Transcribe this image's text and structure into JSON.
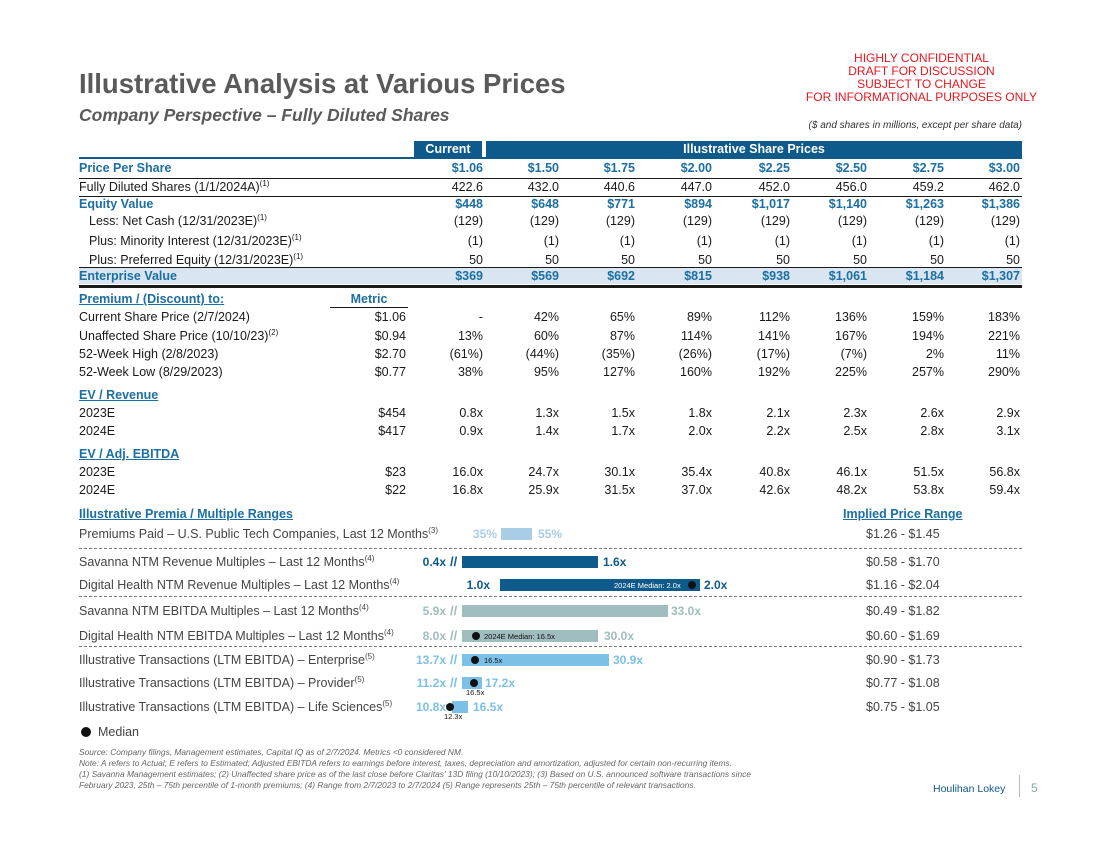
{
  "header": {
    "title": "Illustrative Analysis at Various Prices",
    "subtitle": "Company Perspective – Fully Diluted Shares",
    "confidential": [
      "HIGHLY CONFIDENTIAL",
      "DRAFT FOR DISCUSSION",
      "SUBJECT TO CHANGE",
      "FOR INFORMATIONAL PURPOSES ONLY"
    ],
    "units_note": "($ and shares in millions, except per share data)"
  },
  "table": {
    "current_label": "Current",
    "illustrative_label": "Illustrative Share Prices",
    "rows": [
      {
        "label": "Price Per Share",
        "sup": "",
        "values": [
          "$1.06",
          "$1.50",
          "$1.75",
          "$2.00",
          "$2.25",
          "$2.50",
          "$2.75",
          "$3.00"
        ]
      },
      {
        "label": "Fully Diluted Shares (1/1/2024A)",
        "sup": "(1)",
        "values": [
          "422.6",
          "432.0",
          "440.6",
          "447.0",
          "452.0",
          "456.0",
          "459.2",
          "462.0"
        ]
      },
      {
        "label": "Equity Value",
        "sup": "",
        "values": [
          "$448",
          "$648",
          "$771",
          "$894",
          "$1,017",
          "$1,140",
          "$1,263",
          "$1,386"
        ]
      },
      {
        "label": "Less: Net Cash (12/31/2023E)",
        "sup": "(1)",
        "values": [
          "(129)",
          "(129)",
          "(129)",
          "(129)",
          "(129)",
          "(129)",
          "(129)",
          "(129)"
        ]
      },
      {
        "label": "Plus: Minority Interest (12/31/2023E)",
        "sup": "(1)",
        "values": [
          "(1)",
          "(1)",
          "(1)",
          "(1)",
          "(1)",
          "(1)",
          "(1)",
          "(1)"
        ]
      },
      {
        "label": "Plus: Preferred Equity (12/31/2023E)",
        "sup": "(1)",
        "values": [
          "50",
          "50",
          "50",
          "50",
          "50",
          "50",
          "50",
          "50"
        ]
      },
      {
        "label": "Enterprise Value",
        "sup": "",
        "values": [
          "$369",
          "$569",
          "$692",
          "$815",
          "$938",
          "$1,061",
          "$1,184",
          "$1,307"
        ]
      }
    ],
    "metric_header": "Metric",
    "premium": {
      "title": "Premium / (Discount) to:",
      "rows": [
        {
          "label": "Current Share Price (2/7/2024)",
          "sup": "",
          "metric": "$1.06",
          "values": [
            "-",
            "42%",
            "65%",
            "89%",
            "112%",
            "136%",
            "159%",
            "183%"
          ]
        },
        {
          "label": "Unaffected Share Price (10/10/23)",
          "sup": "(2)",
          "metric": "$0.94",
          "values": [
            "13%",
            "60%",
            "87%",
            "114%",
            "141%",
            "167%",
            "194%",
            "221%"
          ]
        },
        {
          "label": "52-Week High (2/8/2023)",
          "sup": "",
          "metric": "$2.70",
          "values": [
            "(61%)",
            "(44%)",
            "(35%)",
            "(26%)",
            "(17%)",
            "(7%)",
            "2%",
            "11%"
          ]
        },
        {
          "label": "52-Week Low (8/29/2023)",
          "sup": "",
          "metric": "$0.77",
          "values": [
            "38%",
            "95%",
            "127%",
            "160%",
            "192%",
            "225%",
            "257%",
            "290%"
          ]
        }
      ]
    },
    "ev_revenue": {
      "title": "EV / Revenue",
      "rows": [
        {
          "label": "2023E",
          "metric": "$454",
          "values": [
            "0.8x",
            "1.3x",
            "1.5x",
            "1.8x",
            "2.1x",
            "2.3x",
            "2.6x",
            "2.9x"
          ]
        },
        {
          "label": "2024E",
          "metric": "$417",
          "values": [
            "0.9x",
            "1.4x",
            "1.7x",
            "2.0x",
            "2.2x",
            "2.5x",
            "2.8x",
            "3.1x"
          ]
        }
      ]
    },
    "ev_ebitda": {
      "title": "EV / Adj. EBITDA",
      "rows": [
        {
          "label": "2023E",
          "metric": "$23",
          "values": [
            "16.0x",
            "24.7x",
            "30.1x",
            "35.4x",
            "40.8x",
            "46.1x",
            "51.5x",
            "56.8x"
          ]
        },
        {
          "label": "2024E",
          "metric": "$22",
          "values": [
            "16.8x",
            "25.9x",
            "31.5x",
            "37.0x",
            "42.6x",
            "48.2x",
            "53.8x",
            "59.4x"
          ]
        }
      ]
    }
  },
  "ranges": {
    "title": "Illustrative Premia / Multiple Ranges",
    "implied_title": "Implied Price Range",
    "rows": [
      {
        "label": "Premiums Paid – U.S. Public Tech Companies, Last 12 Months",
        "sup": "(3)",
        "low": "35%",
        "high": "55%",
        "median": "",
        "implied": "$1.26 - $1.45"
      },
      {
        "label": "Savanna NTM Revenue Multiples – Last 12 Months",
        "sup": "(4)",
        "low": "0.4x",
        "high": "1.6x",
        "median": "",
        "implied": "$0.58 - $1.70"
      },
      {
        "label": "Digital Health NTM Revenue Multiples – Last 12 Months",
        "sup": "(4)",
        "low": "1.0x",
        "high": "2.0x",
        "median": "2024E Median: 2.0x",
        "implied": "$1.16 - $2.04"
      },
      {
        "label": "Savanna NTM EBITDA Multiples – Last 12 Months",
        "sup": "(4)",
        "low": "5.9x",
        "high": "33.0x",
        "median": "",
        "implied": "$0.49 - $1.82"
      },
      {
        "label": "Digital Health NTM EBITDA Multiples – Last 12 Months",
        "sup": "(4)",
        "low": "8.0x",
        "high": "30.0x",
        "median": "2024E Median: 16.5x",
        "implied": "$0.60 - $1.69"
      },
      {
        "label": "Illustrative Transactions (LTM EBITDA) – Enterprise",
        "sup": "(5)",
        "low": "13.7x",
        "high": "30.9x",
        "median": "16.5x",
        "implied": "$0.90 - $1.73"
      },
      {
        "label": "Illustrative Transactions (LTM EBITDA) – Provider",
        "sup": "(5)",
        "low": "11.2x",
        "high": "17.2x",
        "median": "16.5x",
        "implied": "$0.77 - $1.08"
      },
      {
        "label": "Illustrative Transactions (LTM EBITDA) – Life Sciences",
        "sup": "(5)",
        "low": "10.8x",
        "high": "16.5x",
        "median": "12.3x",
        "implied": "$0.75 - $1.05"
      }
    ],
    "legend": "Median",
    "colors": {
      "light": "#a9cde6",
      "dark": "#0e5a8a",
      "grey": "#9fbcbe",
      "mid": "#7cc0e6",
      "accent": "#1b6fa3"
    }
  },
  "footer": {
    "lines": [
      "Source: Company filings, Management estimates, Capital IQ as of 2/7/2024. Metrics <0 considered NM.",
      "Note: A refers to Actual; E refers to Estimated; Adjusted EBITDA refers to earnings before interest, taxes, depreciation and amortization, adjusted for certain non-recurring items.",
      "(1) Savanna Management estimates; (2) Unaffected share price as of the last close before Claritas' 13D filing (10/10/2023); (3) Based on U.S. announced software transactions since",
      "February 2023, 25th – 75th percentile of 1-month premiums; (4) Range from 2/7/2023 to 2/7/2024  (5) Range represents 25th – 75th percentile of relevant transactions."
    ],
    "brand": "Houlihan Lokey",
    "page": "5"
  }
}
